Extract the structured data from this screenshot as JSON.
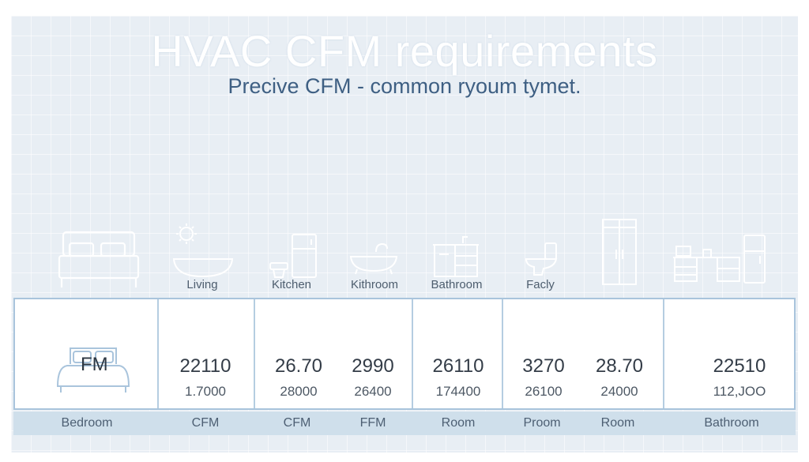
{
  "header": {
    "title": "HVAC CFM  requirements",
    "subtitle": "Precive CFM - common ryoum tymet."
  },
  "icons": [
    {
      "icon": "bed-icon",
      "label": ""
    },
    {
      "icon": "sun-tub-icon",
      "label": "Living"
    },
    {
      "icon": "toilet-fridge-icon",
      "label": "Kitchen"
    },
    {
      "icon": "bathtub-icon",
      "label": "Kithroom"
    },
    {
      "icon": "vanity-sink-icon",
      "label": "Bathroom"
    },
    {
      "icon": "toilet-icon",
      "label": "Facly"
    },
    {
      "icon": "shower-door-icon",
      "label": ""
    },
    {
      "icon": "office-desk-icon",
      "label": ""
    }
  ],
  "table": {
    "bedroom_cell": "FM",
    "cells": [
      {
        "big": "22110",
        "small": "1.7000"
      },
      {
        "big": "26.70",
        "small": "28000"
      },
      {
        "big": "2990",
        "small": "26400"
      },
      {
        "big": "26110",
        "small": "174400"
      },
      {
        "big": "3270",
        "small": "26100"
      },
      {
        "big": "28.70",
        "small": "24000"
      },
      {
        "big": "22510",
        "small": "112,ЈОО"
      }
    ]
  },
  "footer": {
    "labels": [
      "Bedroom",
      "CFM",
      "CFM",
      "FFM",
      "Room",
      "Proom",
      "Room",
      "Bathroom"
    ]
  },
  "colors": {
    "background": "#e8eef4",
    "accent": "#a9c4dc",
    "footer": "#cfdfeb",
    "subtitle": "#3e5f83"
  }
}
